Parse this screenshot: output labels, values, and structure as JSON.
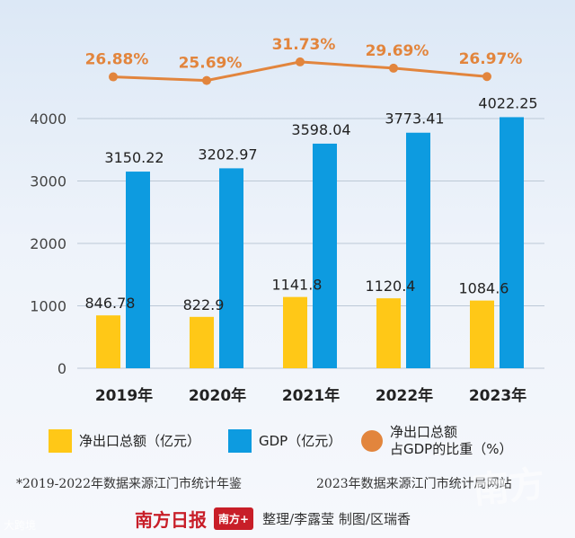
{
  "chart_data": {
    "type": "bar+line",
    "categories": [
      "2019年",
      "2020年",
      "2021年",
      "2022年",
      "2023年"
    ],
    "series": [
      {
        "name": "净出口总额（亿元）",
        "kind": "bar",
        "color": "#ffc817",
        "values": [
          846.78,
          822.9,
          1141.8,
          1120.4,
          1084.6
        ],
        "labels": [
          "846.78",
          "822.9",
          "1141.8",
          "1120.4",
          "1084.6"
        ]
      },
      {
        "name": "GDP（亿元）",
        "kind": "bar",
        "color": "#0d9be0",
        "values": [
          3150.22,
          3202.97,
          3598.04,
          3773.41,
          4022.25
        ],
        "labels": [
          "3150.22",
          "3202.97",
          "3598.04",
          "3773.41",
          "4022.25"
        ]
      },
      {
        "name": "净出口总额占GDP的比重（%）",
        "kind": "line",
        "color": "#e2853d",
        "values": [
          26.88,
          25.69,
          31.73,
          29.69,
          26.97
        ],
        "labels": [
          "26.88%",
          "25.69%",
          "31.73%",
          "29.69%",
          "26.97%"
        ]
      }
    ],
    "y_ticks": [
      "0",
      "1000",
      "2000",
      "3000",
      "4000"
    ],
    "ylim": [
      0,
      4000
    ],
    "grid": true,
    "legend_position": "bottom"
  },
  "legend": {
    "net_export": "净出口总额（亿元）",
    "gdp": "GDP（亿元）",
    "ratio_line1": "净出口总额",
    "ratio_line2": "占GDP的比重（%）"
  },
  "sources": {
    "left": "*2019-2022年数据来源江门市统计年鉴",
    "right": "2023年数据来源江门市统计局网站"
  },
  "footer": {
    "logo": "南方日报",
    "badge": "南方+",
    "credit": "整理/李露莹  制图/区瑞香",
    "watermark": "大跨境",
    "corner_logo": "南方"
  },
  "colors": {
    "net_export": "#ffc817",
    "gdp": "#0d9be0",
    "ratio": "#e2853d",
    "grid": "#bcc8d6"
  }
}
